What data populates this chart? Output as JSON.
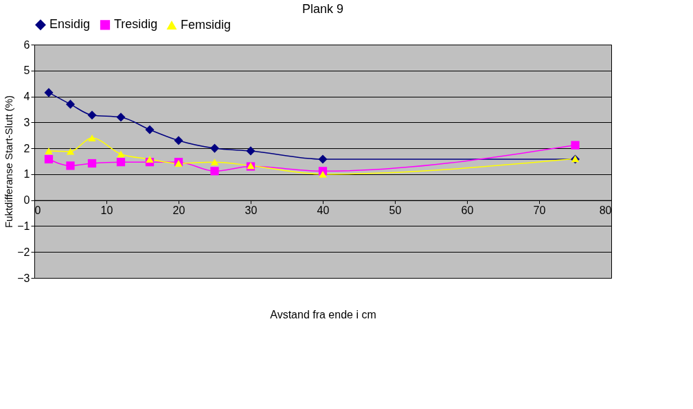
{
  "chart_data": {
    "type": "line",
    "title": "Plank 9",
    "xlabel": "Avstand fra ende i cm",
    "ylabel": "Fuktdifferanse Start-Slutt (%)",
    "x": [
      2,
      5,
      8,
      12,
      16,
      20,
      25,
      30,
      40,
      75
    ],
    "series": [
      {
        "name": "Ensidig",
        "color": "#000080",
        "marker": "diamond",
        "values": [
          4.15,
          3.7,
          3.28,
          3.2,
          2.72,
          2.3,
          2.0,
          1.9,
          1.58,
          1.58
        ]
      },
      {
        "name": "Tresidig",
        "color": "#ff00ff",
        "marker": "square",
        "values": [
          1.58,
          1.33,
          1.42,
          1.47,
          1.47,
          1.47,
          1.12,
          1.3,
          1.12,
          2.12
        ]
      },
      {
        "name": "Femsidig",
        "color": "#ffff00",
        "marker": "triangle",
        "values": [
          1.9,
          1.88,
          2.4,
          1.78,
          1.58,
          1.42,
          1.47,
          1.33,
          1.0,
          1.6
        ]
      }
    ],
    "xlim": [
      0,
      80
    ],
    "xticks": [
      0,
      10,
      20,
      30,
      40,
      50,
      60,
      70,
      80
    ],
    "ylim": [
      -3,
      6
    ],
    "yticks": [
      -3,
      -2,
      -1,
      0,
      1,
      2,
      3,
      4,
      5,
      6
    ],
    "grid": "y",
    "legend": "top",
    "line_style": "solid"
  }
}
